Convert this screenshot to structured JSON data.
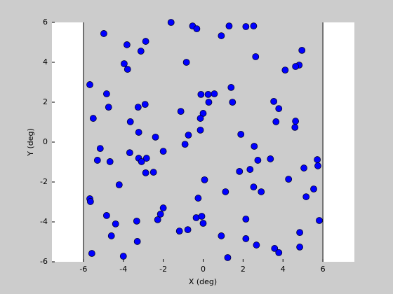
{
  "chart_data": {
    "type": "scatter",
    "x_label": "X (deg)",
    "y_label": "Y (deg)",
    "xlim": [
      -7.58,
      7.58
    ],
    "ylim": [
      -6,
      6
    ],
    "xticks": [
      -6,
      -4,
      -2,
      0,
      2,
      4,
      6
    ],
    "yticks": [
      -6,
      -4,
      -2,
      0,
      2,
      4,
      6
    ],
    "shaded_region": [
      -6,
      6
    ],
    "shade_color": "#cccccc",
    "color": "#0000ff",
    "series": [
      {
        "x": [
          -1.61,
          -0.53,
          -0.32,
          1.3,
          2.14,
          2.53,
          -4.98,
          0.91,
          -2.88,
          -3.82,
          -3.12,
          4.95,
          2.63,
          -0.84,
          -3.96,
          -3.79,
          4.81,
          4.63,
          4.11,
          -5.68,
          1.4,
          -4.84,
          -0.11,
          0.25,
          0.56,
          1.47,
          3.54,
          0.28,
          -2.91,
          -3.26,
          -4.74,
          3.79,
          -1.12,
          0,
          -5.51,
          -0.14,
          4.63,
          3.65,
          -3.65,
          4.6,
          -0.14,
          -3.23,
          -0.74,
          1.89,
          -2.39,
          -0.91,
          2.56,
          -5.16,
          -2.0,
          -3.68,
          -5.3,
          -3.23,
          -2.84,
          -3.09,
          2.74,
          3.37,
          -4.67,
          5.72,
          5.75,
          5.05,
          2.35,
          1.82,
          -2.49,
          -2.88,
          0.07,
          4.28,
          -4.21,
          2.53,
          2.91,
          1.12,
          5.54,
          5.16,
          -0.25,
          -5.68,
          -5.65,
          -2.0,
          -2.14,
          -4.84,
          -0.35,
          -0.07,
          -2.28,
          2.14,
          5.82,
          -3.33,
          0,
          -4.39,
          -1.19,
          -0.77,
          4.84,
          -4.6,
          0.91,
          2.14,
          -3.3,
          2.67,
          4.84,
          3.58,
          -5.58,
          3.79,
          -4.0,
          1.23
        ],
        "values": [
          6.0,
          5.82,
          5.68,
          5.82,
          5.79,
          5.82,
          5.44,
          5.33,
          5.05,
          4.88,
          4.56,
          4.6,
          4.28,
          4.0,
          3.93,
          3.65,
          3.86,
          3.79,
          3.61,
          2.88,
          2.74,
          2.42,
          2.39,
          2.39,
          2.42,
          2.0,
          2.04,
          2.0,
          1.89,
          1.75,
          1.75,
          1.68,
          1.54,
          1.44,
          1.19,
          1.19,
          1.05,
          1.02,
          1.02,
          0.74,
          0.6,
          0.49,
          0.35,
          0.39,
          0.25,
          -0.11,
          -0.21,
          -0.32,
          -0.46,
          -0.53,
          -0.91,
          -0.81,
          -0.81,
          -0.98,
          -0.91,
          -0.84,
          -0.98,
          -0.88,
          -1.19,
          -1.3,
          -1.37,
          -1.47,
          -1.51,
          -1.54,
          -1.89,
          -1.86,
          -2.14,
          -2.25,
          -2.49,
          -2.49,
          -2.35,
          -2.74,
          -2.81,
          -2.84,
          -2.98,
          -3.3,
          -3.61,
          -3.68,
          -3.79,
          -3.72,
          -3.89,
          -3.86,
          -3.93,
          -3.96,
          -4.07,
          -4.1,
          -4.46,
          -4.39,
          -4.53,
          -4.7,
          -4.7,
          -4.84,
          -4.98,
          -5.16,
          -5.26,
          -5.33,
          -5.58,
          -5.54,
          -5.72,
          -5.79
        ]
      }
    ]
  }
}
